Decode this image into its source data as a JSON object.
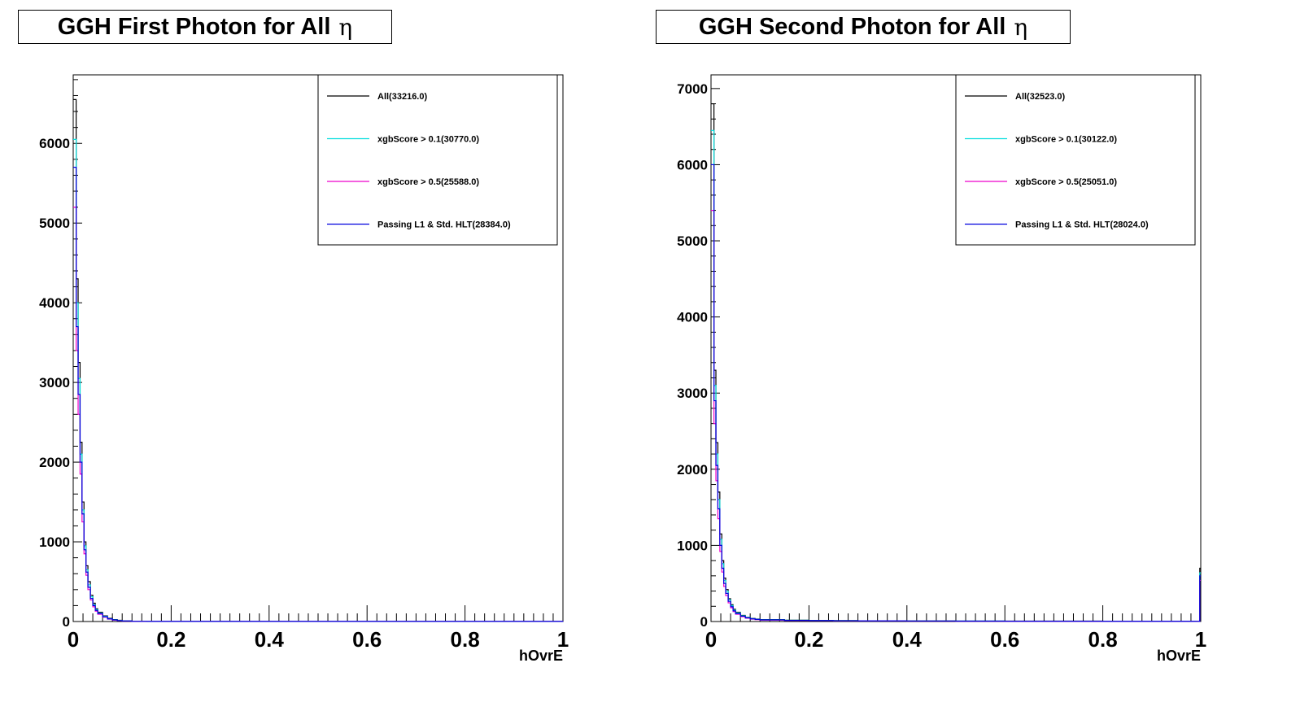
{
  "chart_data": [
    {
      "type": "line",
      "title": "GGH First Photon for All",
      "title_symbol": "η",
      "xlabel": "hOvrE",
      "ylabel": "",
      "xlim": [
        0,
        1
      ],
      "ylim": [
        0,
        6860
      ],
      "x_ticks": [
        "0",
        "0.2",
        "0.4",
        "0.6",
        "0.8",
        "1"
      ],
      "y_ticks": [
        0,
        1000,
        2000,
        3000,
        4000,
        5000,
        6000
      ],
      "legend_position": "top-right",
      "grid": false,
      "series": [
        {
          "name": "All(33216.0)",
          "color": "#000000",
          "x": [
            0.002,
            0.006,
            0.01,
            0.014,
            0.018,
            0.022,
            0.026,
            0.03,
            0.035,
            0.04,
            0.045,
            0.05,
            0.06,
            0.07,
            0.08,
            0.09,
            0.1,
            0.12,
            0.15,
            1.0
          ],
          "y": [
            6550,
            4300,
            3250,
            2250,
            1500,
            1000,
            700,
            500,
            330,
            230,
            160,
            115,
            70,
            40,
            25,
            15,
            8,
            4,
            2,
            0
          ]
        },
        {
          "name": "xgbScore > 0.1(30770.0)",
          "color": "#00dddd",
          "x": [
            0.002,
            0.006,
            0.01,
            0.014,
            0.018,
            0.022,
            0.026,
            0.03,
            0.035,
            0.04,
            0.045,
            0.05,
            0.06,
            0.07,
            0.08,
            0.09,
            0.1,
            0.12,
            0.15,
            1.0
          ],
          "y": [
            6050,
            4000,
            3050,
            2100,
            1400,
            950,
            650,
            460,
            310,
            210,
            150,
            105,
            65,
            35,
            22,
            13,
            7,
            3,
            1,
            0
          ]
        },
        {
          "name": "xgbScore > 0.5(25588.0)",
          "color": "#ee00cc",
          "x": [
            0.002,
            0.006,
            0.01,
            0.014,
            0.018,
            0.022,
            0.026,
            0.03,
            0.035,
            0.04,
            0.045,
            0.05,
            0.06,
            0.07,
            0.08,
            0.09,
            0.1,
            0.12,
            0.15,
            1.0
          ],
          "y": [
            5200,
            3400,
            2600,
            1850,
            1250,
            850,
            580,
            400,
            270,
            185,
            130,
            92,
            55,
            30,
            18,
            10,
            5,
            2,
            1,
            0
          ]
        },
        {
          "name": "Passing L1 & Std. HLT(28384.0)",
          "color": "#0000dd",
          "x": [
            0.002,
            0.006,
            0.01,
            0.014,
            0.018,
            0.022,
            0.026,
            0.03,
            0.035,
            0.04,
            0.045,
            0.05,
            0.06,
            0.07,
            0.08,
            0.09,
            0.1,
            0.12,
            0.15,
            1.0
          ],
          "y": [
            5700,
            3700,
            2850,
            2000,
            1350,
            900,
            620,
            430,
            290,
            200,
            140,
            100,
            60,
            33,
            20,
            11,
            6,
            2,
            1,
            0
          ]
        }
      ]
    },
    {
      "type": "line",
      "title": "GGH Second Photon for All",
      "title_symbol": "η",
      "xlabel": "hOvrE",
      "ylabel": "",
      "xlim": [
        0,
        1
      ],
      "ylim": [
        0,
        7180
      ],
      "x_ticks": [
        "0",
        "0.2",
        "0.4",
        "0.6",
        "0.8",
        "1"
      ],
      "y_ticks": [
        0,
        1000,
        2000,
        3000,
        4000,
        5000,
        6000,
        7000
      ],
      "legend_position": "top-right",
      "grid": false,
      "series": [
        {
          "name": "All(32523.0)",
          "color": "#000000",
          "x": [
            0.002,
            0.006,
            0.01,
            0.014,
            0.018,
            0.022,
            0.026,
            0.03,
            0.035,
            0.04,
            0.045,
            0.05,
            0.06,
            0.07,
            0.08,
            0.09,
            0.1,
            0.15,
            0.2,
            0.25,
            0.3,
            0.4,
            0.5,
            0.6,
            0.8,
            0.99,
            0.998
          ],
          "y": [
            6800,
            3300,
            2350,
            1700,
            1150,
            800,
            570,
            420,
            300,
            220,
            160,
            120,
            80,
            55,
            40,
            32,
            25,
            18,
            15,
            12,
            10,
            8,
            6,
            5,
            4,
            3,
            700
          ]
        },
        {
          "name": "xgbScore > 0.1(30122.0)",
          "color": "#00dddd",
          "x": [
            0.002,
            0.006,
            0.01,
            0.014,
            0.018,
            0.022,
            0.026,
            0.03,
            0.035,
            0.04,
            0.045,
            0.05,
            0.06,
            0.07,
            0.08,
            0.09,
            0.1,
            0.15,
            0.2,
            0.25,
            0.3,
            0.4,
            0.5,
            0.6,
            0.8,
            0.99,
            0.998
          ],
          "y": [
            6450,
            3100,
            2200,
            1600,
            1080,
            760,
            540,
            400,
            285,
            210,
            150,
            112,
            75,
            52,
            38,
            30,
            23,
            16,
            13,
            11,
            9,
            7,
            5,
            4,
            3,
            2,
            640
          ]
        },
        {
          "name": "xgbScore > 0.5(25051.0)",
          "color": "#ee00cc",
          "x": [
            0.002,
            0.006,
            0.01,
            0.014,
            0.018,
            0.022,
            0.026,
            0.03,
            0.035,
            0.04,
            0.045,
            0.05,
            0.06,
            0.07,
            0.08,
            0.09,
            0.1,
            0.15,
            0.2,
            0.25,
            0.3,
            0.4,
            0.5,
            0.6,
            0.8,
            0.99,
            0.998
          ],
          "y": [
            5400,
            2600,
            1850,
            1350,
            920,
            650,
            460,
            340,
            245,
            180,
            130,
            96,
            64,
            44,
            32,
            25,
            19,
            13,
            11,
            9,
            7,
            5,
            4,
            3,
            2,
            2,
            540
          ]
        },
        {
          "name": "Passing L1 & Std. HLT(28024.0)",
          "color": "#0000dd",
          "x": [
            0.002,
            0.006,
            0.01,
            0.014,
            0.018,
            0.022,
            0.026,
            0.03,
            0.035,
            0.04,
            0.045,
            0.05,
            0.06,
            0.07,
            0.08,
            0.09,
            0.1,
            0.15,
            0.2,
            0.25,
            0.3,
            0.4,
            0.5,
            0.6,
            0.8,
            0.99,
            0.998
          ],
          "y": [
            6000,
            2900,
            2050,
            1480,
            1000,
            700,
            500,
            370,
            265,
            195,
            140,
            104,
            70,
            48,
            35,
            28,
            21,
            15,
            12,
            10,
            8,
            6,
            5,
            4,
            3,
            2,
            600
          ]
        }
      ]
    }
  ]
}
